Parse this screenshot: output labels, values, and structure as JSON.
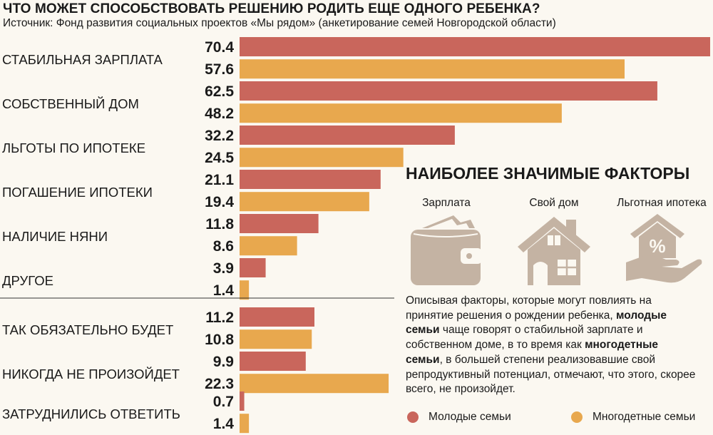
{
  "header": {
    "title": "ЧТО МОЖЕТ СПОСОБСТВОВАТЬ РЕШЕНИЮ РОДИТЬ ЕЩЕ ОДНОГО РЕБЕНКА?",
    "source": "Источник: Фонд развития  социальных проектов «Мы рядом» (анкетирование семей Новгородской области)"
  },
  "colors": {
    "young": "#c9665c",
    "large": "#e8a84e",
    "icon": "#c4b3a3",
    "background": "#fbf8f1"
  },
  "chart_data": {
    "type": "bar",
    "orientation": "horizontal",
    "xlim": [
      0,
      70.4
    ],
    "series": [
      {
        "name": "Молодые семьи",
        "color": "#c9665c"
      },
      {
        "name": "Многодетные семьи",
        "color": "#e8a84e"
      }
    ],
    "groups": [
      {
        "category": "СТАБИЛЬНАЯ ЗАРПЛАТА",
        "values": [
          70.4,
          57.6
        ],
        "labels": [
          "70.4",
          "57.6"
        ]
      },
      {
        "category": "СОБСТВЕННЫЙ ДОМ",
        "values": [
          62.5,
          48.2
        ],
        "labels": [
          "62.5",
          "48.2"
        ]
      },
      {
        "category": "ЛЬГОТЫ ПО ИПОТЕКЕ",
        "values": [
          32.2,
          24.5
        ],
        "labels": [
          "32.2",
          "24.5"
        ]
      },
      {
        "category": "ПОГАШЕНИЕ ИПОТЕКИ",
        "values": [
          21.1,
          19.4
        ],
        "labels": [
          "21.1",
          "19.4"
        ]
      },
      {
        "category": "НАЛИЧИЕ НЯНИ",
        "values": [
          11.8,
          8.6
        ],
        "labels": [
          "11.8",
          "8.6"
        ]
      },
      {
        "category": "ДРУГОЕ",
        "values": [
          3.9,
          1.4
        ],
        "labels": [
          "3.9",
          "1.4"
        ]
      },
      {
        "category": "ТАК ОБЯЗАТЕЛЬНО БУДЕТ",
        "values": [
          11.2,
          10.8
        ],
        "labels": [
          "11.2",
          "10.8"
        ]
      },
      {
        "category": "НИКОГДА НЕ ПРОИЗОЙДЕТ",
        "values": [
          9.9,
          22.3
        ],
        "labels": [
          "9.9",
          "22.3"
        ]
      },
      {
        "category": "ЗАТРУДНИЛИСЬ ОТВЕТИТЬ",
        "values": [
          0.7,
          1.4
        ],
        "labels": [
          "0.7",
          "1.4"
        ]
      }
    ]
  },
  "panel": {
    "title": "НАИБОЛЕЕ ЗНАЧИМЫЕ ФАКТОРЫ",
    "factors": [
      {
        "label": "Зарплата",
        "icon": "wallet-icon"
      },
      {
        "label": "Свой дом",
        "icon": "house-icon"
      },
      {
        "label": "Льготная ипотека",
        "icon": "mortgage-house-hand-icon"
      }
    ],
    "description": {
      "p1": "Описывая факторы, которые могут повлиять на принятие решения о рождении ребенка, ",
      "b1": "молодые семьи",
      "p2": " чаще говорят о стабильной зарплате и собственном доме, в то время как ",
      "b2": "многодетные семьи",
      "p3": ", в большей степени реализовавшие свой репродуктивный потенциал, отмечают, что этого, скорее всего, не произойдет."
    }
  },
  "legend": {
    "young": "Молодые семьи",
    "large": "Многодетные семьи"
  }
}
